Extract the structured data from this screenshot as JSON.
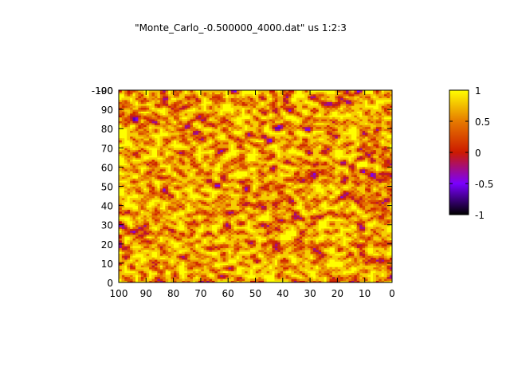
{
  "chart_data": {
    "type": "heatmap",
    "title": "\"Monte_Carlo_-0.500000_4000.dat\" us 1:2:3",
    "xlabel": "",
    "ylabel": "",
    "xlim": [
      100,
      0
    ],
    "ylim": [
      0,
      100
    ],
    "x_reversed": true,
    "x_ticks": [
      100,
      90,
      80,
      70,
      60,
      50,
      40,
      30,
      20,
      10,
      0
    ],
    "y_ticks": [
      0,
      10,
      20,
      30,
      40,
      50,
      60,
      70,
      80,
      90
    ],
    "y_top_overlap_labels": [
      "-100",
      "-90"
    ],
    "grid": false,
    "colorbar": {
      "range": [
        -1,
        1
      ],
      "ticks": [
        1,
        0.5,
        0,
        -0.5,
        -1
      ],
      "tick_labels": [
        "1",
        "0.5",
        "0",
        "-0.5",
        "-1"
      ],
      "palette": [
        "#000000",
        "#7a00ff",
        "#cc1a00",
        "#e67a00",
        "#ffff00"
      ]
    },
    "grid_size": [
      100,
      100
    ],
    "values_note_visible": false
  }
}
